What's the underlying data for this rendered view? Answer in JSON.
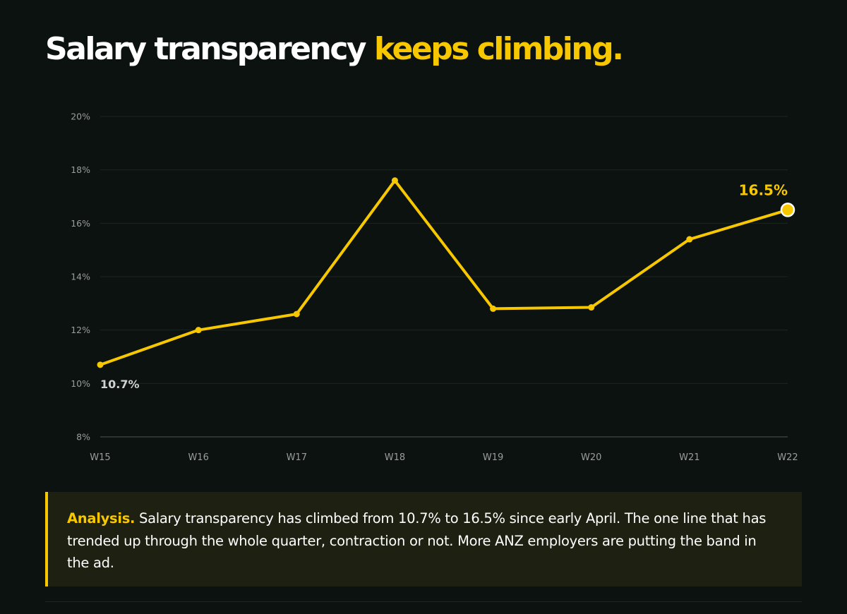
{
  "header": {
    "title_main": "Salary transparency",
    "title_highlight": "keeps climbing."
  },
  "chart_data": {
    "type": "line",
    "title": "Salary transparency keeps climbing.",
    "categories": [
      "W15",
      "W16",
      "W17",
      "W18",
      "W19",
      "W20",
      "W21",
      "W22"
    ],
    "series": [
      {
        "values": [
          10.7,
          12.0,
          12.6,
          17.6,
          12.8,
          12.85,
          15.4,
          16.5
        ]
      }
    ],
    "ylim": [
      8,
      20
    ],
    "yticks": [
      8,
      10,
      12,
      14,
      16,
      18,
      20
    ],
    "ytick_labels": [
      "8%",
      "10%",
      "12%",
      "14%",
      "16%",
      "18%",
      "20%"
    ],
    "grid": true,
    "annotations": {
      "start_label": "10.7%",
      "end_label": "16.5%"
    },
    "colors": {
      "line": "#f7c800",
      "grid": "#1d2420",
      "axis": "#3a403c",
      "tick_text": "#9a9e9b",
      "start_label": "#cfd2d0",
      "end_marker_stroke": "#ffffff"
    }
  },
  "analysis": {
    "label": "Analysis.",
    "text": "Salary transparency has climbed from 10.7% to 16.5% since early April. The one line that has trended up through the whole quarter, contraction or not. More ANZ employers are putting the band in the ad."
  },
  "colors": {
    "background": "#0c120f",
    "accent": "#f7c800",
    "callout_bg": "#1e2012"
  }
}
